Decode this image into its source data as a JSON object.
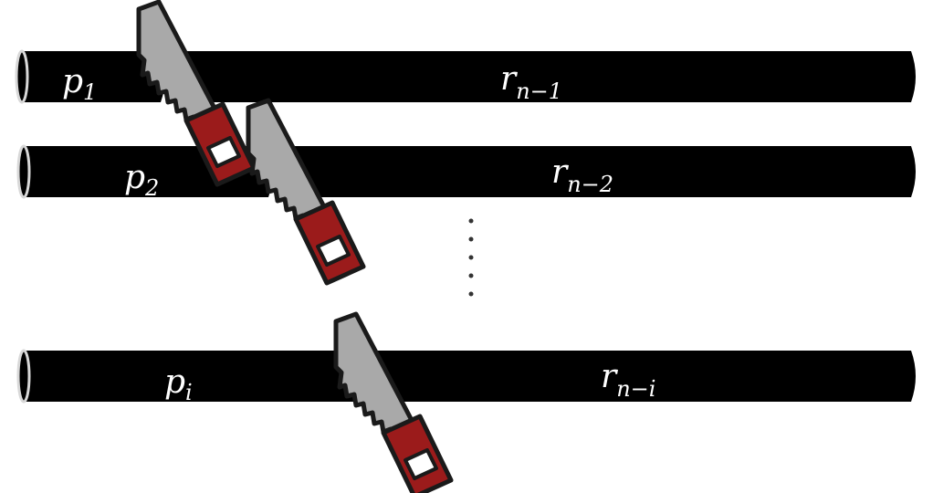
{
  "rods": [
    {
      "left_label": {
        "base": "p",
        "sub": "1"
      },
      "right_label": {
        "base": "r",
        "sub": "n−1"
      }
    },
    {
      "left_label": {
        "base": "p",
        "sub": "2"
      },
      "right_label": {
        "base": "r",
        "sub": "n−2"
      }
    },
    {
      "left_label": {
        "base": "p",
        "sub": "i"
      },
      "right_label": {
        "base": "r",
        "sub": "n−i"
      }
    }
  ],
  "colors": {
    "rod": "#000000",
    "rod_highlight": "#d8d8d8",
    "saw_blade": "#a9a9a9",
    "saw_outline": "#1a1a1a",
    "saw_handle": "#9b1b1b",
    "background": "#ffffff"
  },
  "icons": {
    "saw": "hand-saw-icon",
    "ellipsis": "vertical-ellipsis"
  }
}
